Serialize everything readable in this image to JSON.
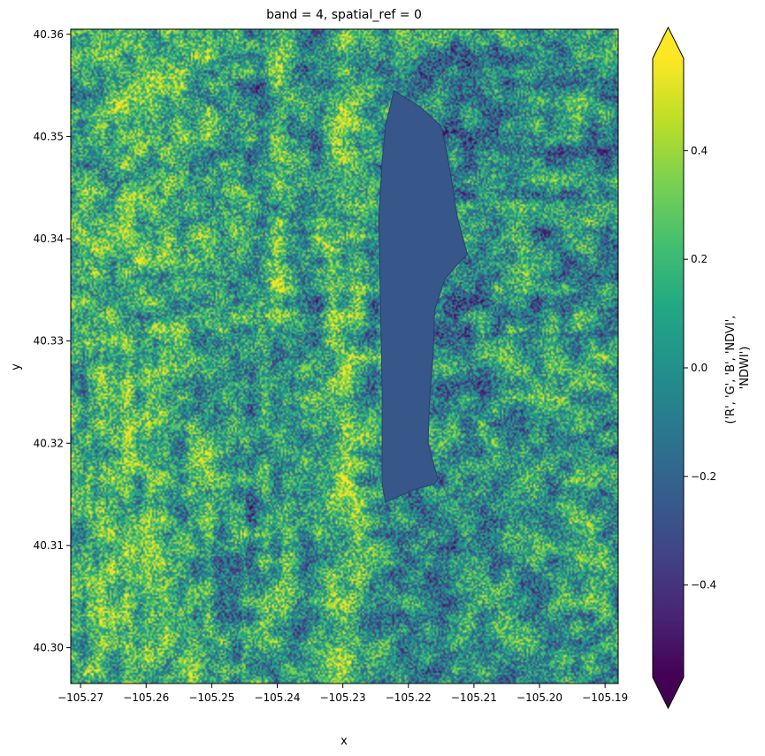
{
  "chart_data": {
    "type": "heatmap",
    "title": "band = 4, spatial_ref = 0",
    "xlabel": "x",
    "ylabel": "y",
    "colorbar_label_lines": [
      "('R', 'G', 'B', 'NDVI',",
      "'NDWI')"
    ],
    "colormap": "viridis",
    "colorbar_extend": "both",
    "xlim": [
      -105.2715,
      -105.188
    ],
    "ylim": [
      40.2965,
      40.3605
    ],
    "clim": [
      -0.57,
      0.57
    ],
    "x_ticks": [
      -105.27,
      -105.26,
      -105.25,
      -105.24,
      -105.23,
      -105.22,
      -105.21,
      -105.2,
      -105.19
    ],
    "x_tick_labels": [
      "−105.27",
      "−105.26",
      "−105.25",
      "−105.24",
      "−105.23",
      "−105.22",
      "−105.21",
      "−105.20",
      "−105.19"
    ],
    "y_ticks": [
      40.3,
      40.31,
      40.32,
      40.33,
      40.34,
      40.35,
      40.36
    ],
    "y_tick_labels": [
      "40.30",
      "40.31",
      "40.32",
      "40.33",
      "40.34",
      "40.35",
      "40.36"
    ],
    "colorbar_ticks": [
      -0.4,
      -0.2,
      0.0,
      0.2,
      0.4
    ],
    "colorbar_tick_labels": [
      "−0.4",
      "−0.2",
      "0.0",
      "0.2",
      "0.4"
    ],
    "features": {
      "lake": {
        "value": -0.2,
        "polygon": [
          [
            -105.2222,
            40.3545
          ],
          [
            -105.218,
            40.3528
          ],
          [
            -105.215,
            40.351
          ],
          [
            -105.214,
            40.348
          ],
          [
            -105.2125,
            40.342
          ],
          [
            -105.211,
            40.3385
          ],
          [
            -105.2125,
            40.3375
          ],
          [
            -105.2145,
            40.336
          ],
          [
            -105.216,
            40.333
          ],
          [
            -105.2162,
            40.329
          ],
          [
            -105.2168,
            40.324
          ],
          [
            -105.217,
            40.32
          ],
          [
            -105.2155,
            40.3165
          ],
          [
            -105.216,
            40.316
          ],
          [
            -105.219,
            40.3155
          ],
          [
            -105.2215,
            40.3148
          ],
          [
            -105.2235,
            40.3142
          ],
          [
            -105.224,
            40.316
          ],
          [
            -105.224,
            40.325
          ],
          [
            -105.2243,
            40.335
          ],
          [
            -105.2245,
            40.342
          ],
          [
            -105.224,
            40.3475
          ],
          [
            -105.2235,
            40.351
          ]
        ]
      }
    }
  }
}
